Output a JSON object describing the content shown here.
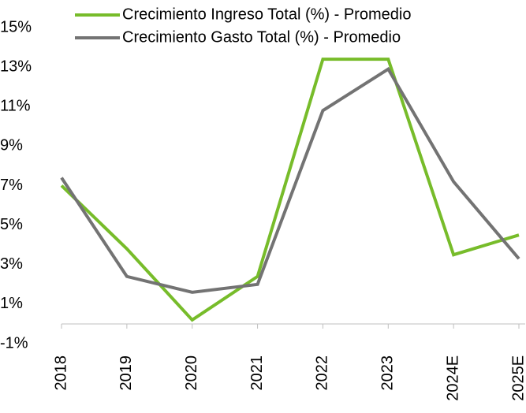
{
  "chart_data": {
    "type": "line",
    "categories": [
      "2018",
      "2019",
      "2020",
      "2021",
      "2022",
      "2023",
      "2024E",
      "2025E"
    ],
    "series": [
      {
        "name": "Crecimiento Ingreso Total (%) - Promedio",
        "color": "#77bc2a",
        "values": [
          7.0,
          3.8,
          0.2,
          2.4,
          13.4,
          13.4,
          3.5,
          4.5
        ]
      },
      {
        "name": "Crecimiento Gasto Total (%) - Promedio",
        "color": "#737373",
        "values": [
          7.4,
          2.4,
          1.6,
          2.0,
          10.8,
          12.9,
          7.2,
          3.3
        ]
      }
    ],
    "ylim": [
      -1,
      15
    ],
    "yticks": [
      {
        "value": -1,
        "label": "-1%"
      },
      {
        "value": 1,
        "label": "1%"
      },
      {
        "value": 3,
        "label": "3%"
      },
      {
        "value": 5,
        "label": "5%"
      },
      {
        "value": 7,
        "label": "7%"
      },
      {
        "value": 9,
        "label": "9%"
      },
      {
        "value": 11,
        "label": "11%"
      },
      {
        "value": 13,
        "label": "13%"
      },
      {
        "value": 15,
        "label": "15%"
      }
    ],
    "grid": false,
    "legend": "top"
  }
}
